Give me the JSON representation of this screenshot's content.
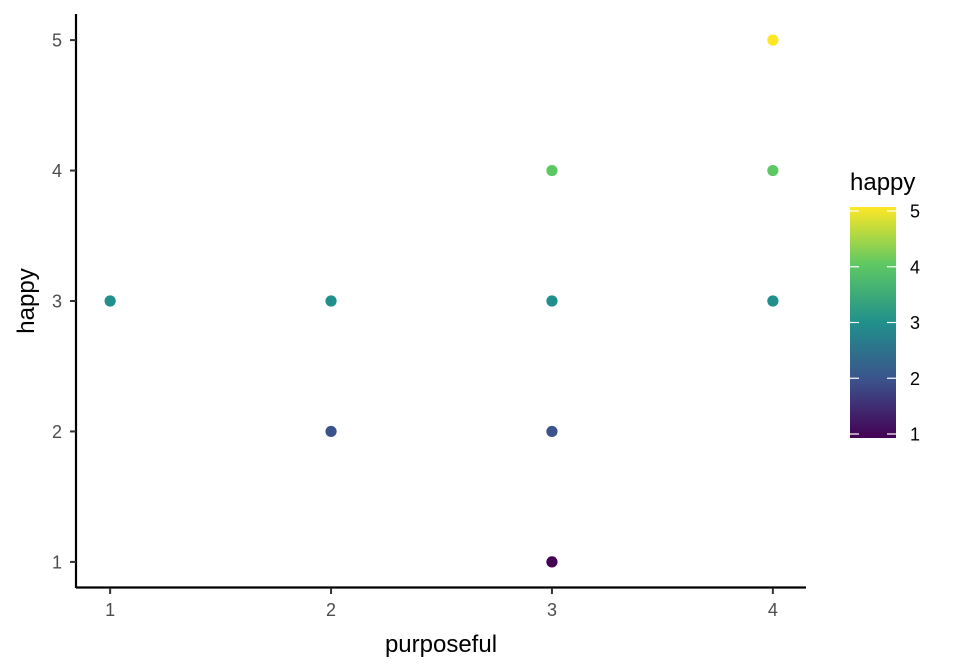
{
  "chart_data": {
    "type": "scatter",
    "xlabel": "purposeful",
    "ylabel": "happy",
    "xlim": [
      0.85,
      4.15
    ],
    "ylim": [
      0.8,
      5.2
    ],
    "x_ticks": [
      1,
      2,
      3,
      4
    ],
    "y_ticks": [
      1,
      2,
      3,
      4,
      5
    ],
    "grid": false,
    "points": [
      {
        "x": 1,
        "y": 3
      },
      {
        "x": 2,
        "y": 3
      },
      {
        "x": 2,
        "y": 2
      },
      {
        "x": 3,
        "y": 4
      },
      {
        "x": 3,
        "y": 3
      },
      {
        "x": 3,
        "y": 2
      },
      {
        "x": 3,
        "y": 1
      },
      {
        "x": 4,
        "y": 5
      },
      {
        "x": 4,
        "y": 4
      },
      {
        "x": 4,
        "y": 3
      }
    ],
    "color_by": "happy",
    "legend": {
      "title": "happy",
      "position": "right",
      "type": "colorbar",
      "range": [
        1,
        5
      ],
      "breaks": [
        1,
        2,
        3,
        4,
        5
      ]
    },
    "colormap": "viridis",
    "color_stops": [
      "#440154",
      "#3b528b",
      "#21908c",
      "#5dc863",
      "#fde725"
    ]
  }
}
